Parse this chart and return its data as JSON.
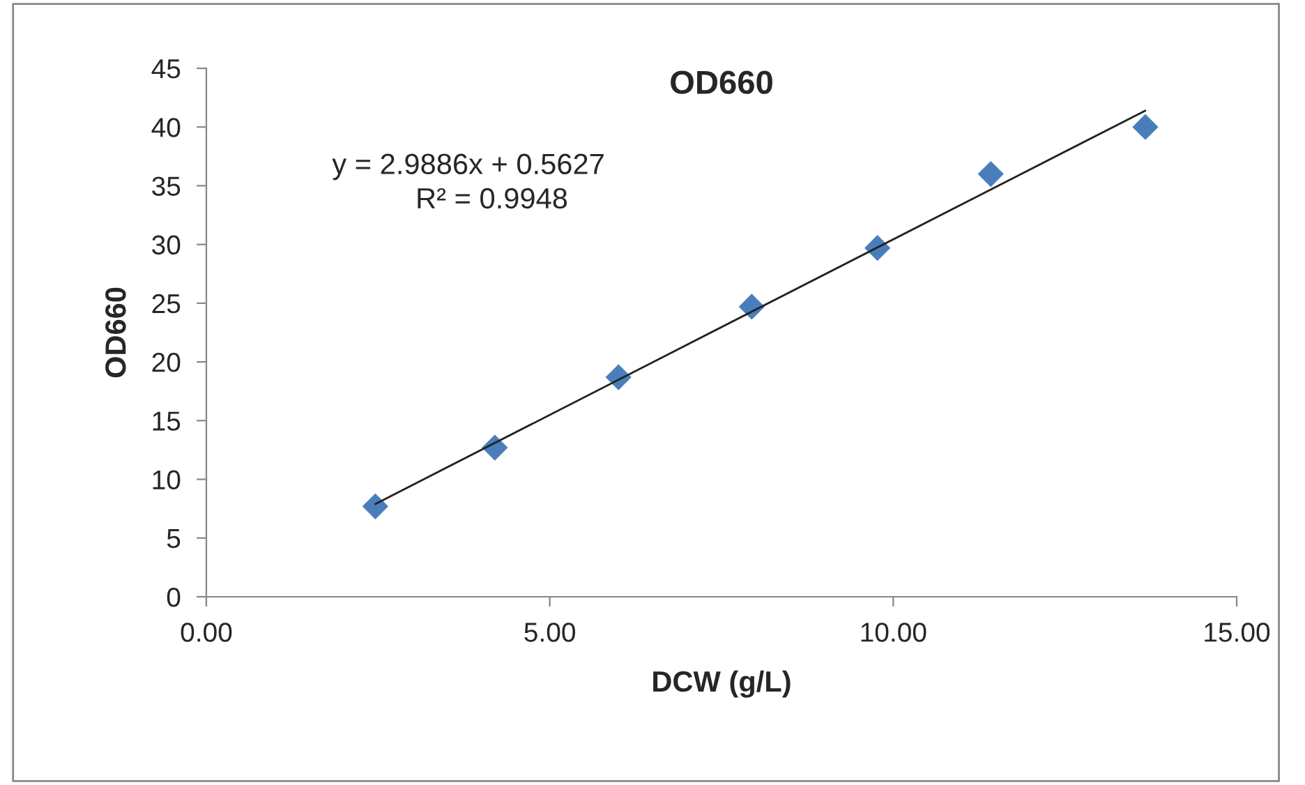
{
  "chart_data": {
    "type": "scatter",
    "title": "OD660",
    "xlabel": "DCW (g/L)",
    "ylabel": "OD660",
    "x": [
      2.46,
      4.2,
      6.0,
      7.94,
      9.77,
      11.42,
      13.67
    ],
    "series": [
      {
        "color": "#4a7ebb",
        "marker": "diamond",
        "values": [
          7.7,
          12.7,
          18.7,
          24.7,
          29.7,
          36.0,
          40.0
        ]
      },
      {
        "type": "line",
        "color": "#222222",
        "marker": "none",
        "line_style": "solid",
        "x": [
          2.46,
          13.67
        ],
        "values": [
          7.9,
          41.4
        ]
      }
    ],
    "annotations": [
      "y = 2.9886x + 0.5627",
      "R² = 0.9948"
    ],
    "xlim": [
      0,
      15
    ],
    "xticks": [
      {
        "value": 0,
        "label": "0.00"
      },
      {
        "value": 5,
        "label": "5.00"
      },
      {
        "value": 10,
        "label": "10.00"
      },
      {
        "value": 15,
        "label": "15.00"
      }
    ],
    "ylim": [
      0,
      45
    ],
    "yticks": [
      0,
      5,
      10,
      15,
      20,
      25,
      30,
      35,
      40,
      45
    ],
    "grid": false,
    "legend": false
  }
}
